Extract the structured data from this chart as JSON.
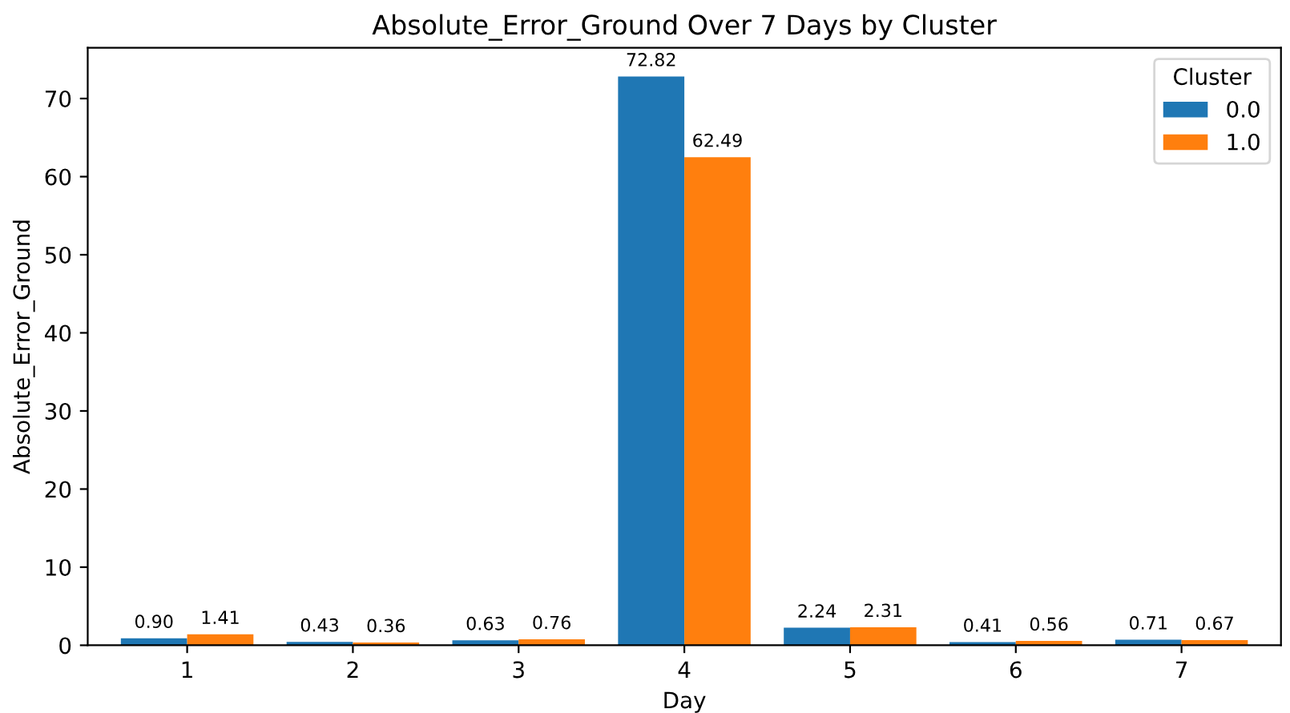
{
  "chart_data": {
    "type": "bar",
    "title": "Absolute_Error_Ground Over 7 Days by Cluster",
    "xlabel": "Day",
    "ylabel": "Absolute_Error_Ground",
    "legend_title": "Cluster",
    "categories": [
      "1",
      "2",
      "3",
      "4",
      "5",
      "6",
      "7"
    ],
    "series": [
      {
        "name": "0.0",
        "color": "#1f77b4",
        "values": [
          0.9,
          0.43,
          0.63,
          72.82,
          2.24,
          0.41,
          0.71
        ],
        "value_labels": [
          "0.90",
          "0.43",
          "0.63",
          "72.82",
          "2.24",
          "0.41",
          "0.71"
        ]
      },
      {
        "name": "1.0",
        "color": "#ff7f0e",
        "values": [
          1.41,
          0.36,
          0.76,
          62.49,
          2.31,
          0.56,
          0.67
        ],
        "value_labels": [
          "1.41",
          "0.36",
          "0.76",
          "62.49",
          "2.31",
          "0.56",
          "0.67"
        ]
      }
    ],
    "ylim": [
      0,
      76.5
    ],
    "yticks": [
      0,
      10,
      20,
      30,
      40,
      50,
      60,
      70
    ],
    "grid": false,
    "legend": "top right"
  }
}
